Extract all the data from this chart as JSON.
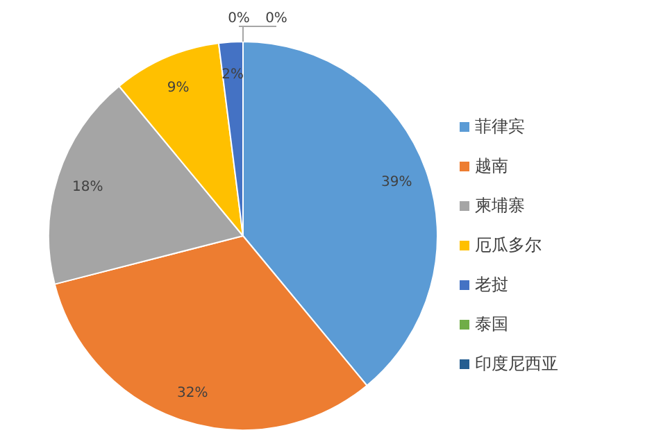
{
  "chart_data": {
    "type": "pie",
    "categories": [
      "菲律宾",
      "越南",
      "柬埔寨",
      "厄瓜多尔",
      "老挝",
      "泰国",
      "印度尼西亚"
    ],
    "values": [
      39,
      32,
      18,
      9,
      2,
      0,
      0
    ],
    "value_labels": [
      "39%",
      "32%",
      "18%",
      "9%",
      "2%",
      "0%",
      "0%"
    ],
    "colors": [
      "#5b9bd5",
      "#ed7d31",
      "#a5a5a5",
      "#ffc000",
      "#4472c4",
      "#70ad47",
      "#255e91"
    ],
    "legend": "right"
  }
}
